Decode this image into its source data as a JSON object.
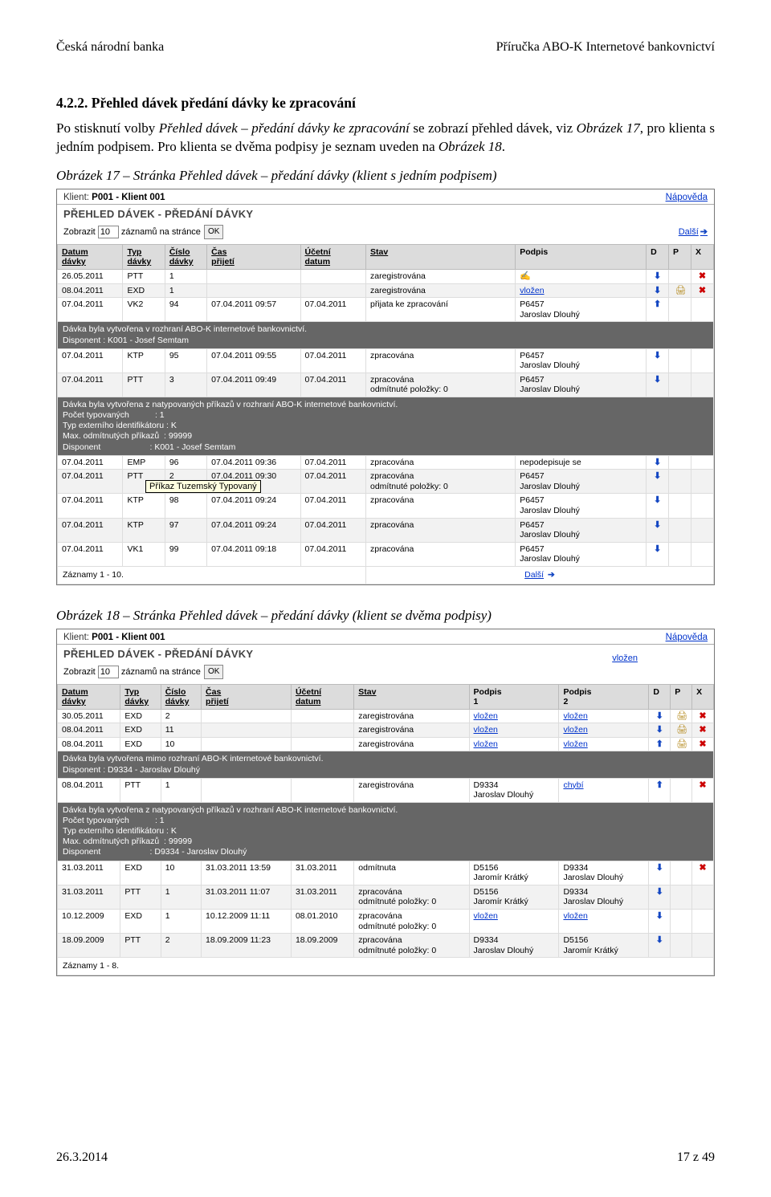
{
  "doc": {
    "header_left": "Česká národní banka",
    "header_right": "Příručka ABO-K Internetové bankovnictví",
    "heading": "4.2.2. Přehled dávek předání dávky ke zpracování",
    "para_html": "Po stisknutí volby <i>Přehled dávek – předání dávky ke zpracování</i> se zobrazí přehled dávek, viz <i>Obrázek 17</i>, pro klienta s jedním podpisem. Pro klienta se dvěma podpisy je seznam uveden na <i>Obrázek 18</i>.",
    "caption1": "Obrázek 17 – Stránka Přehled dávek – předání dávky (klient s jedním podpisem)",
    "caption2": "Obrázek 18 – Stránka Přehled dávek – předání dávky (klient se dvěma podpisy)",
    "footer_left": "26.3.2014",
    "footer_right": "17 z 49"
  },
  "shot1": {
    "klient_label": "Klient:",
    "klient": "P001 - Klient 001",
    "help": "Nápověda",
    "title": "PŘEHLED DÁVEK - PŘEDÁNÍ DÁVKY",
    "zobrazit": "Zobrazit",
    "zaznamu": "záznamů na stránce",
    "zobrazit_val": "10",
    "ok": "OK",
    "dalsi": "Další",
    "columns": [
      "Datum dávky",
      "Typ dávky",
      "Číslo dávky",
      "Čas přijetí",
      "Účetní datum",
      "Stav",
      "Podpis",
      "D",
      "P",
      "X"
    ],
    "col_widths": [
      "70",
      "45",
      "45",
      "100",
      "70",
      "160",
      "140",
      "24",
      "24",
      "24"
    ],
    "tooltip": "Příkaz Tuzemský Typovaný",
    "footer": "Záznamy 1 - 10.",
    "footer_dalsi": "Další",
    "rows": [
      {
        "t": "row",
        "band": 0,
        "d": [
          "26.05.2011",
          "PTT",
          "1",
          "",
          "",
          "zaregistrována",
          {
            "sig": true
          }
        ],
        "ic": {
          "d": 1,
          "x": 1
        }
      },
      {
        "t": "row",
        "band": 1,
        "d": [
          "08.04.2011",
          "EXD",
          "1",
          "",
          "",
          "zaregistrována",
          {
            "link": "vložen"
          }
        ],
        "ic": {
          "d": 1,
          "p": 1,
          "x": 1
        }
      },
      {
        "t": "row",
        "band": 0,
        "d": [
          "07.04.2011",
          "VK2",
          "94",
          "07.04.2011 09:57",
          "07.04.2011",
          "přijata ke zpracování",
          {
            "html": "P6457<br>Jaroslav Dlouhý"
          }
        ],
        "ic": {
          "u": 1
        }
      },
      {
        "t": "info",
        "text": "Dávka byla vytvořena v rozhraní ABO-K internetové bankovnictví.\nDisponent :  K001 - Josef Semtam"
      },
      {
        "t": "row",
        "band": 0,
        "d": [
          "07.04.2011",
          "KTP",
          "95",
          "07.04.2011 09:55",
          "07.04.2011",
          "zpracována",
          {
            "html": "P6457<br>Jaroslav Dlouhý"
          }
        ],
        "ic": {
          "d": 1
        }
      },
      {
        "t": "row",
        "band": 1,
        "d": [
          "07.04.2011",
          "PTT",
          "3",
          "07.04.2011 09:49",
          "07.04.2011",
          {
            "html": "zpracována<br>odmítnuté položky: 0"
          },
          {
            "html": "P6457<br>Jaroslav Dlouhý"
          }
        ],
        "ic": {
          "d": 1
        }
      },
      {
        "t": "info",
        "text": "Dávka byla vytvořena z natypovaných příkazů v rozhraní ABO-K internetové bankovnictví.\nPočet typovaných           : 1\nTyp externího identifikátoru : K\nMax. odmítnutých příkazů  : 99999\nDisponent                     : K001 - Josef Semtam"
      },
      {
        "t": "row",
        "band": 0,
        "d": [
          "07.04.2011",
          "EMP",
          "96",
          "07.04.2011 09:36",
          "07.04.2011",
          "zpracována",
          "nepodepisuje se"
        ],
        "ic": {
          "d": 1
        }
      },
      {
        "t": "row",
        "band": 1,
        "d": [
          "07.04.2011",
          "PTT",
          "2",
          "07.04.2011 09:30",
          "07.04.2011",
          {
            "html": "zpracována<br>odmítnuté položky: 0"
          },
          {
            "html": "P6457<br>Jaroslav Dlouhý"
          }
        ],
        "ic": {
          "d": 1
        }
      },
      {
        "t": "row",
        "band": 0,
        "d": [
          "07.04.2011",
          "KTP",
          "98",
          "07.04.2011 09:24",
          "07.04.2011",
          "zpracována",
          {
            "html": "P6457<br>Jaroslav Dlouhý"
          }
        ],
        "ic": {
          "d": 1
        }
      },
      {
        "t": "row",
        "band": 1,
        "d": [
          "07.04.2011",
          "KTP",
          "97",
          "07.04.2011 09:24",
          "07.04.2011",
          "zpracována",
          {
            "html": "P6457<br>Jaroslav Dlouhý"
          }
        ],
        "ic": {
          "d": 1
        }
      },
      {
        "t": "row",
        "band": 0,
        "d": [
          "07.04.2011",
          "VK1",
          "99",
          "07.04.2011 09:18",
          "07.04.2011",
          "zpracována",
          {
            "html": "P6457<br>Jaroslav Dlouhý"
          }
        ],
        "ic": {
          "d": 1
        }
      }
    ]
  },
  "shot2": {
    "klient_label": "Klient:",
    "klient": "P001 - Klient 001",
    "help": "Nápověda",
    "vlozen_free": "vložen",
    "title": "PŘEHLED DÁVEK - PŘEDÁNÍ DÁVKY",
    "zobrazit": "Zobrazit",
    "zaznamu": "záznamů na stránce",
    "zobrazit_val": "10",
    "ok": "OK",
    "columns": [
      "Datum dávky",
      "Typ dávky",
      "Číslo dávky",
      "Čas přijetí",
      "Účetní datum",
      "Stav",
      "Podpis 1",
      "Podpis 2",
      "D",
      "P",
      "X"
    ],
    "col_widths": [
      "70",
      "45",
      "45",
      "100",
      "70",
      "128",
      "100",
      "100",
      "24",
      "24",
      "24"
    ],
    "footer": "Záznamy 1 - 8.",
    "rows": [
      {
        "t": "row",
        "band": 0,
        "d": [
          "30.05.2011",
          "EXD",
          "2",
          "",
          "",
          "zaregistrována",
          {
            "link": "vložen"
          },
          {
            "link": "vložen"
          }
        ],
        "ic": {
          "d": 1,
          "p": 1,
          "x": 1
        }
      },
      {
        "t": "row",
        "band": 1,
        "d": [
          "08.04.2011",
          "EXD",
          "11",
          "",
          "",
          "zaregistrována",
          {
            "link": "vložen"
          },
          {
            "link": "vložen"
          }
        ],
        "ic": {
          "d": 1,
          "p": 1,
          "x": 1
        }
      },
      {
        "t": "row",
        "band": 0,
        "d": [
          "08.04.2011",
          "EXD",
          "10",
          "",
          "",
          "zaregistrována",
          {
            "link": "vložen"
          },
          {
            "link": "vložen"
          }
        ],
        "ic": {
          "u": 1,
          "p": 1,
          "x": 1
        }
      },
      {
        "t": "info",
        "text": "Dávka byla vytvořena mimo rozhraní ABO-K internetové bankovnictví.\nDisponent : D9334 -  Jaroslav Dlouhý"
      },
      {
        "t": "row",
        "band": 0,
        "d": [
          "08.04.2011",
          "PTT",
          "1",
          "",
          "",
          "zaregistrována",
          {
            "html": "D9334<br>Jaroslav Dlouhý"
          },
          {
            "link": "chybí"
          }
        ],
        "ic": {
          "u": 1,
          "x": 1
        }
      },
      {
        "t": "info",
        "text": "Dávka byla vytvořena z natypovaných příkazů v rozhraní ABO-K internetové bankovnictví.\nPočet typovaných           : 1\nTyp externího identifikátoru : K\nMax. odmítnutých příkazů  : 99999\nDisponent                     : D9334 - Jaroslav Dlouhý"
      },
      {
        "t": "row",
        "band": 0,
        "d": [
          "31.03.2011",
          "EXD",
          "10",
          "31.03.2011 13:59",
          "31.03.2011",
          "odmítnuta",
          {
            "html": "D5156<br>Jaromír Krátký"
          },
          {
            "html": "D9334<br>Jaroslav Dlouhý"
          }
        ],
        "ic": {
          "d": 1,
          "x": 1
        }
      },
      {
        "t": "row",
        "band": 1,
        "d": [
          "31.03.2011",
          "PTT",
          "1",
          "31.03.2011 11:07",
          "31.03.2011",
          {
            "html": "zpracována<br>odmítnuté položky: 0"
          },
          {
            "html": "D5156<br>Jaromír Krátký"
          },
          {
            "html": "D9334<br>Jaroslav Dlouhý"
          }
        ],
        "ic": {
          "d": 1
        }
      },
      {
        "t": "row",
        "band": 0,
        "d": [
          "10.12.2009",
          "EXD",
          "1",
          "10.12.2009 11:11",
          "08.01.2010",
          {
            "html": "zpracována<br>odmítnuté položky: 0"
          },
          {
            "link": "vložen"
          },
          {
            "link": "vložen"
          }
        ],
        "ic": {
          "d": 1
        }
      },
      {
        "t": "row",
        "band": 1,
        "d": [
          "18.09.2009",
          "PTT",
          "2",
          "18.09.2009 11:23",
          "18.09.2009",
          {
            "html": "zpracována<br>odmítnuté položky: 0"
          },
          {
            "html": "D9334<br>Jaroslav Dlouhý"
          },
          {
            "html": "D5156<br>Jaromír Krátký"
          }
        ],
        "ic": {
          "d": 1
        }
      }
    ]
  }
}
